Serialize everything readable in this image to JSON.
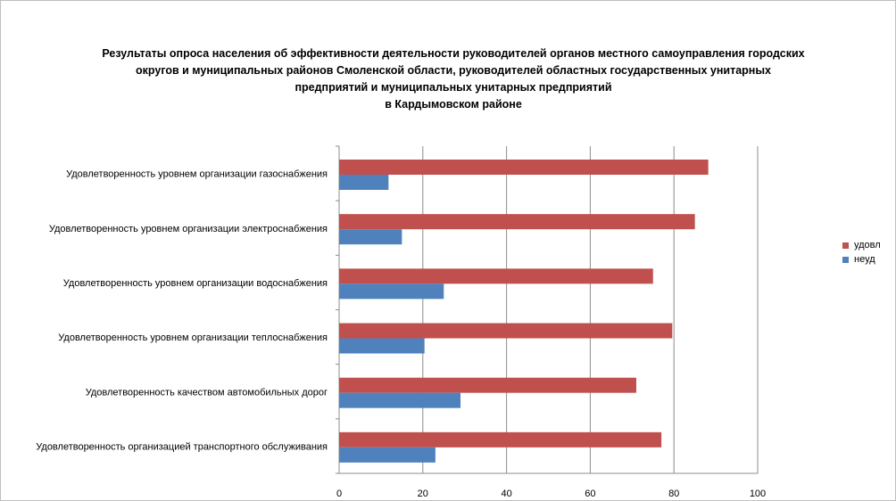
{
  "chart_data": {
    "type": "bar",
    "orientation": "horizontal",
    "title_lines": [
      "Результаты опроса населения об эффективности деятельности руководителей органов местного самоуправления городских",
      "округов и муниципальных районов Смоленской области, руководителей областных государственных унитарных",
      "предприятий и муниципальных унитарных предприятий",
      "в Кардымовском районе"
    ],
    "categories": [
      "Удовлетворенность уровнем организации газоснабжения",
      "Удовлетворенность уровнем организации электроснабжения",
      "Удовлетворенность уровнем организации водоснабжения",
      "Удовлетворенность уровнем организации теплоснабжения",
      "Удовлетворенность качеством автомобильных дорог",
      "Удовлетворенность организацией транспортного обслуживания"
    ],
    "series": [
      {
        "name": "удовл",
        "color": "#c0504d",
        "values": [
          88.2,
          85.0,
          75.0,
          79.6,
          71.0,
          77.0
        ]
      },
      {
        "name": "неуд",
        "color": "#4f81bd",
        "values": [
          11.8,
          15.0,
          25.0,
          20.4,
          29.0,
          23.0
        ]
      }
    ],
    "xlim": [
      0,
      100
    ],
    "xticks": [
      "0",
      "20",
      "40",
      "60",
      "80",
      "100"
    ],
    "grid": true,
    "legend_position": "right"
  }
}
